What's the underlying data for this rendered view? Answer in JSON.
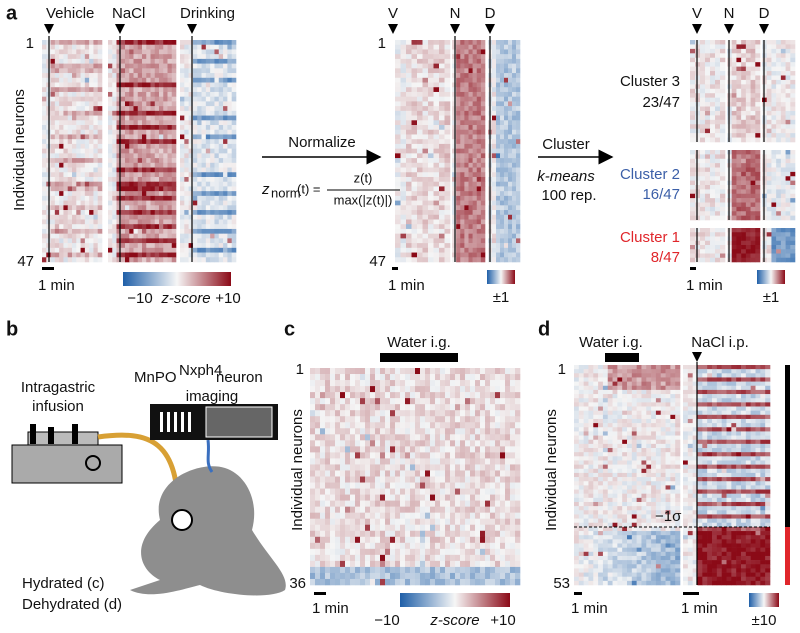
{
  "panel_a": {
    "letter": "a",
    "stimuli": [
      "Vehicle",
      "NaCl",
      "Drinking"
    ],
    "row_first": "1",
    "row_last": "47",
    "y_label": "Individual neurons",
    "scale": "1 min",
    "cbar_min": "−10",
    "cbar_label": "z-score",
    "cbar_max": "+10",
    "normalize": "Normalize",
    "formula": {
      "lhs": "z",
      "sub": "norm",
      "eq": "(t) =",
      "num": "z(t)",
      "den": "max(|z(t)|)"
    },
    "mid": {
      "stimuli": [
        "V",
        "N",
        "D"
      ],
      "row_first": "1",
      "row_last": "47",
      "scale": "1 min",
      "cbar": "±1"
    },
    "cluster_step": {
      "title": "Cluster",
      "method": "k-means",
      "reps": "100 rep."
    },
    "right": {
      "stimuli": [
        "V",
        "N",
        "D"
      ],
      "clusters": [
        {
          "name": "Cluster 3",
          "count": "23/47"
        },
        {
          "name": "Cluster 2",
          "count": "16/47"
        },
        {
          "name": "Cluster 1",
          "count": "8/47"
        }
      ],
      "scale": "1 min",
      "cbar": "±1"
    }
  },
  "panel_b": {
    "letter": "b",
    "imaging": [
      "MnPO",
      "Nxph4",
      "neuron",
      "imaging"
    ],
    "infusion": [
      "Intragastric",
      "infusion"
    ],
    "conditions": [
      "Hydrated (c)",
      "Dehydrated (d)"
    ]
  },
  "panel_c": {
    "letter": "c",
    "stimulus": "Water i.g.",
    "row_first": "1",
    "row_last": "36",
    "y_label": "Individual neurons",
    "scale": "1 min",
    "cbar_min": "−10",
    "cbar_label": "z-score",
    "cbar_max": "+10"
  },
  "panel_d": {
    "letter": "d",
    "stimuli": [
      "Water i.g.",
      "NaCl i.p."
    ],
    "row_first": "1",
    "row_last": "53",
    "y_label": "Individual neurons",
    "threshold": "−1σ",
    "scales": [
      "1 min",
      "1 min"
    ],
    "cbar": "±10"
  }
}
